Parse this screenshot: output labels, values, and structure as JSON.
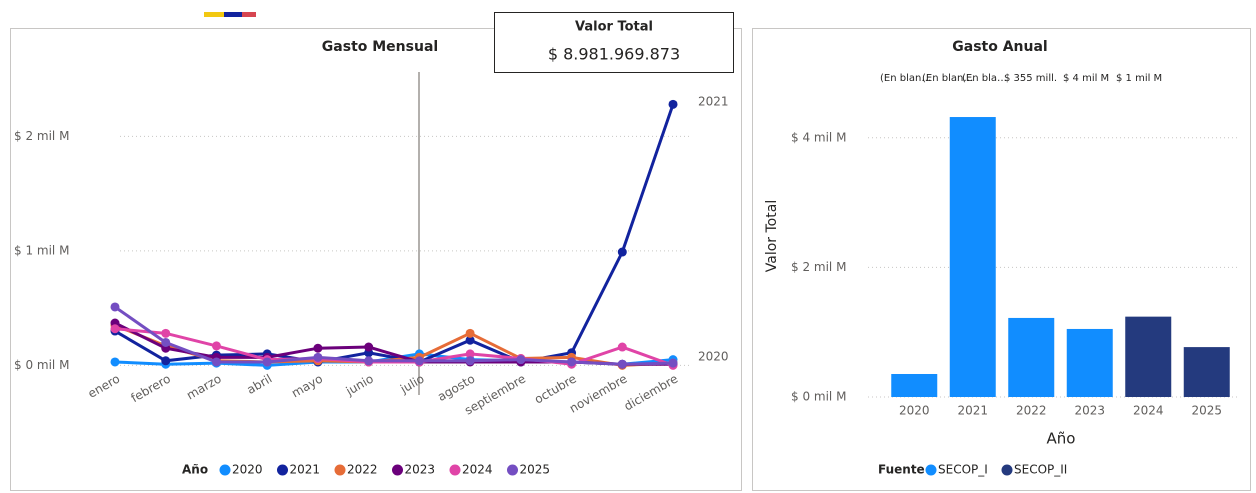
{
  "card": {
    "title": "Valor Total",
    "value": "$ 8.981.969.873"
  },
  "chart_data": [
    {
      "type": "line",
      "title": "Gasto Mensual",
      "legend_title": "Año",
      "categories": [
        "enero",
        "febrero",
        "marzo",
        "abril",
        "mayo",
        "junio",
        "julio",
        "agosto",
        "septiembre",
        "octubre",
        "noviembre",
        "diciembre"
      ],
      "series": [
        {
          "name": "2020",
          "color": "#118DFF",
          "values": [
            0.03,
            0.01,
            0.02,
            0,
            0.03,
            0.03,
            0.1,
            0.05,
            0.04,
            0.03,
            0.01,
            0.05
          ]
        },
        {
          "name": "2021",
          "color": "#12239E",
          "values": [
            0.3,
            0.04,
            0.09,
            0.1,
            0.03,
            0.11,
            0.03,
            0.22,
            0.03,
            0.11,
            0.99,
            2.28
          ]
        },
        {
          "name": "2022",
          "color": "#E66C37",
          "values": [
            0.35,
            0.17,
            0.04,
            0.03,
            0.04,
            0.03,
            0.07,
            0.28,
            0.06,
            0.07,
            0,
            0.02
          ]
        },
        {
          "name": "2023",
          "color": "#6B007B",
          "values": [
            0.37,
            0.15,
            0.07,
            0.07,
            0.15,
            0.16,
            0.03,
            0.03,
            0.03,
            0.03,
            0.01,
            0.01
          ]
        },
        {
          "name": "2024",
          "color": "#E044A7",
          "values": [
            0.32,
            0.28,
            0.17,
            0.05,
            0.06,
            0.03,
            0.03,
            0.1,
            0.06,
            0.01,
            0.16,
            0
          ]
        },
        {
          "name": "2025",
          "color": "#744EC2",
          "values": [
            0.51,
            0.2,
            0.03,
            0.03,
            0.07,
            0.04,
            0.04,
            0.04,
            0.05,
            0.03,
            0.01,
            0.02
          ]
        }
      ],
      "ylim": [
        -0.25,
        2.65
      ],
      "yticks": [
        {
          "value": 0,
          "label": "$ 0 mil M"
        },
        {
          "value": 1,
          "label": "$ 1 mil M"
        },
        {
          "value": 2,
          "label": "$ 2 mil M"
        }
      ],
      "grid": true
    },
    {
      "type": "bar",
      "title": "Gasto Anual",
      "xlabel": "Año",
      "ylabel": "Valor Total",
      "legend_title": "Fuente",
      "annotations": [
        "(En blan…",
        "(En blan…",
        "(En bla…",
        "$ 355 mill.",
        "$ 4 mil M",
        "$ 1 mil M"
      ],
      "categories": [
        "2020",
        "2021",
        "2022",
        "2023",
        "2024",
        "2025"
      ],
      "series": [
        {
          "name": "SECOP_I",
          "color": "#118DFF",
          "values": [
            0.355,
            4.32,
            1.22,
            1.05,
            null,
            null
          ]
        },
        {
          "name": "SECOP_II",
          "color": "#243A7E",
          "values": [
            null,
            null,
            null,
            null,
            1.24,
            0.77
          ]
        }
      ],
      "ylim": [
        0,
        4.66
      ],
      "yticks": [
        {
          "value": 0,
          "label": "$ 0 mil M"
        },
        {
          "value": 2,
          "label": "$ 2 mil M"
        },
        {
          "value": 4,
          "label": "$ 4 mil M"
        }
      ],
      "grid": true
    }
  ]
}
